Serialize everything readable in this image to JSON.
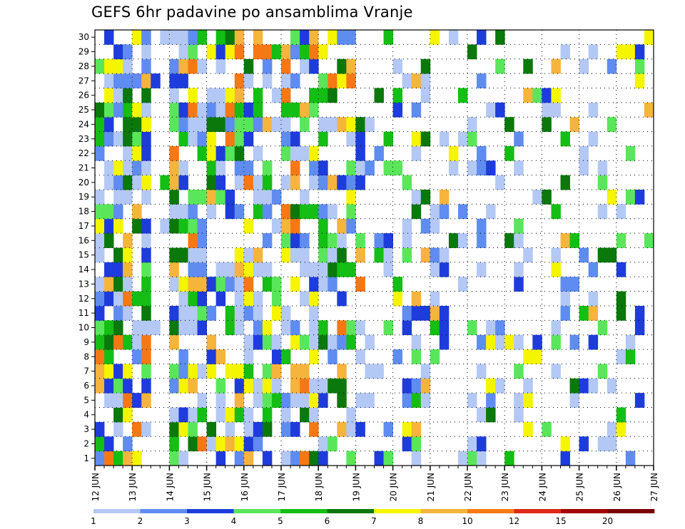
{
  "title": "GEFS 6hr padavine po ansamblima Vranje",
  "chart_data": {
    "type": "heatmap",
    "title": "GEFS 6hr padavine po ansamblima Vranje",
    "xlabel": "",
    "ylabel": "",
    "y_ticks": [
      "1",
      "2",
      "3",
      "4",
      "5",
      "6",
      "7",
      "8",
      "9",
      "10",
      "11",
      "12",
      "13",
      "14",
      "15",
      "16",
      "17",
      "18",
      "19",
      "20",
      "21",
      "22",
      "23",
      "24",
      "25",
      "26",
      "27",
      "28",
      "29",
      "30"
    ],
    "x_ticks": [
      "12 JUN",
      "13 JUN",
      "14 JUN",
      "15 JUN",
      "16 JUN",
      "17 JUN",
      "18 JUN",
      "19 JUN",
      "20 JUN",
      "21 JUN",
      "22 JUN",
      "23 JUN",
      "24 JUN",
      "25 JUN",
      "26 JUN",
      "27 JUN"
    ],
    "colorbar": {
      "labels": [
        "1",
        "2",
        "3",
        "4",
        "5",
        "6",
        "7",
        "8",
        "10",
        "12",
        "15",
        "20"
      ],
      "colors": [
        "#b4c8f5",
        "#5f8cf0",
        "#1e3cdc",
        "#5ae65a",
        "#14be14",
        "#0a780a",
        "#f5f500",
        "#f5b43c",
        "#f57814",
        "#dc2814",
        "#a00000",
        "#780000"
      ]
    },
    "members": 30,
    "time_steps": 60,
    "legend": "bottom",
    "grid": true
  }
}
